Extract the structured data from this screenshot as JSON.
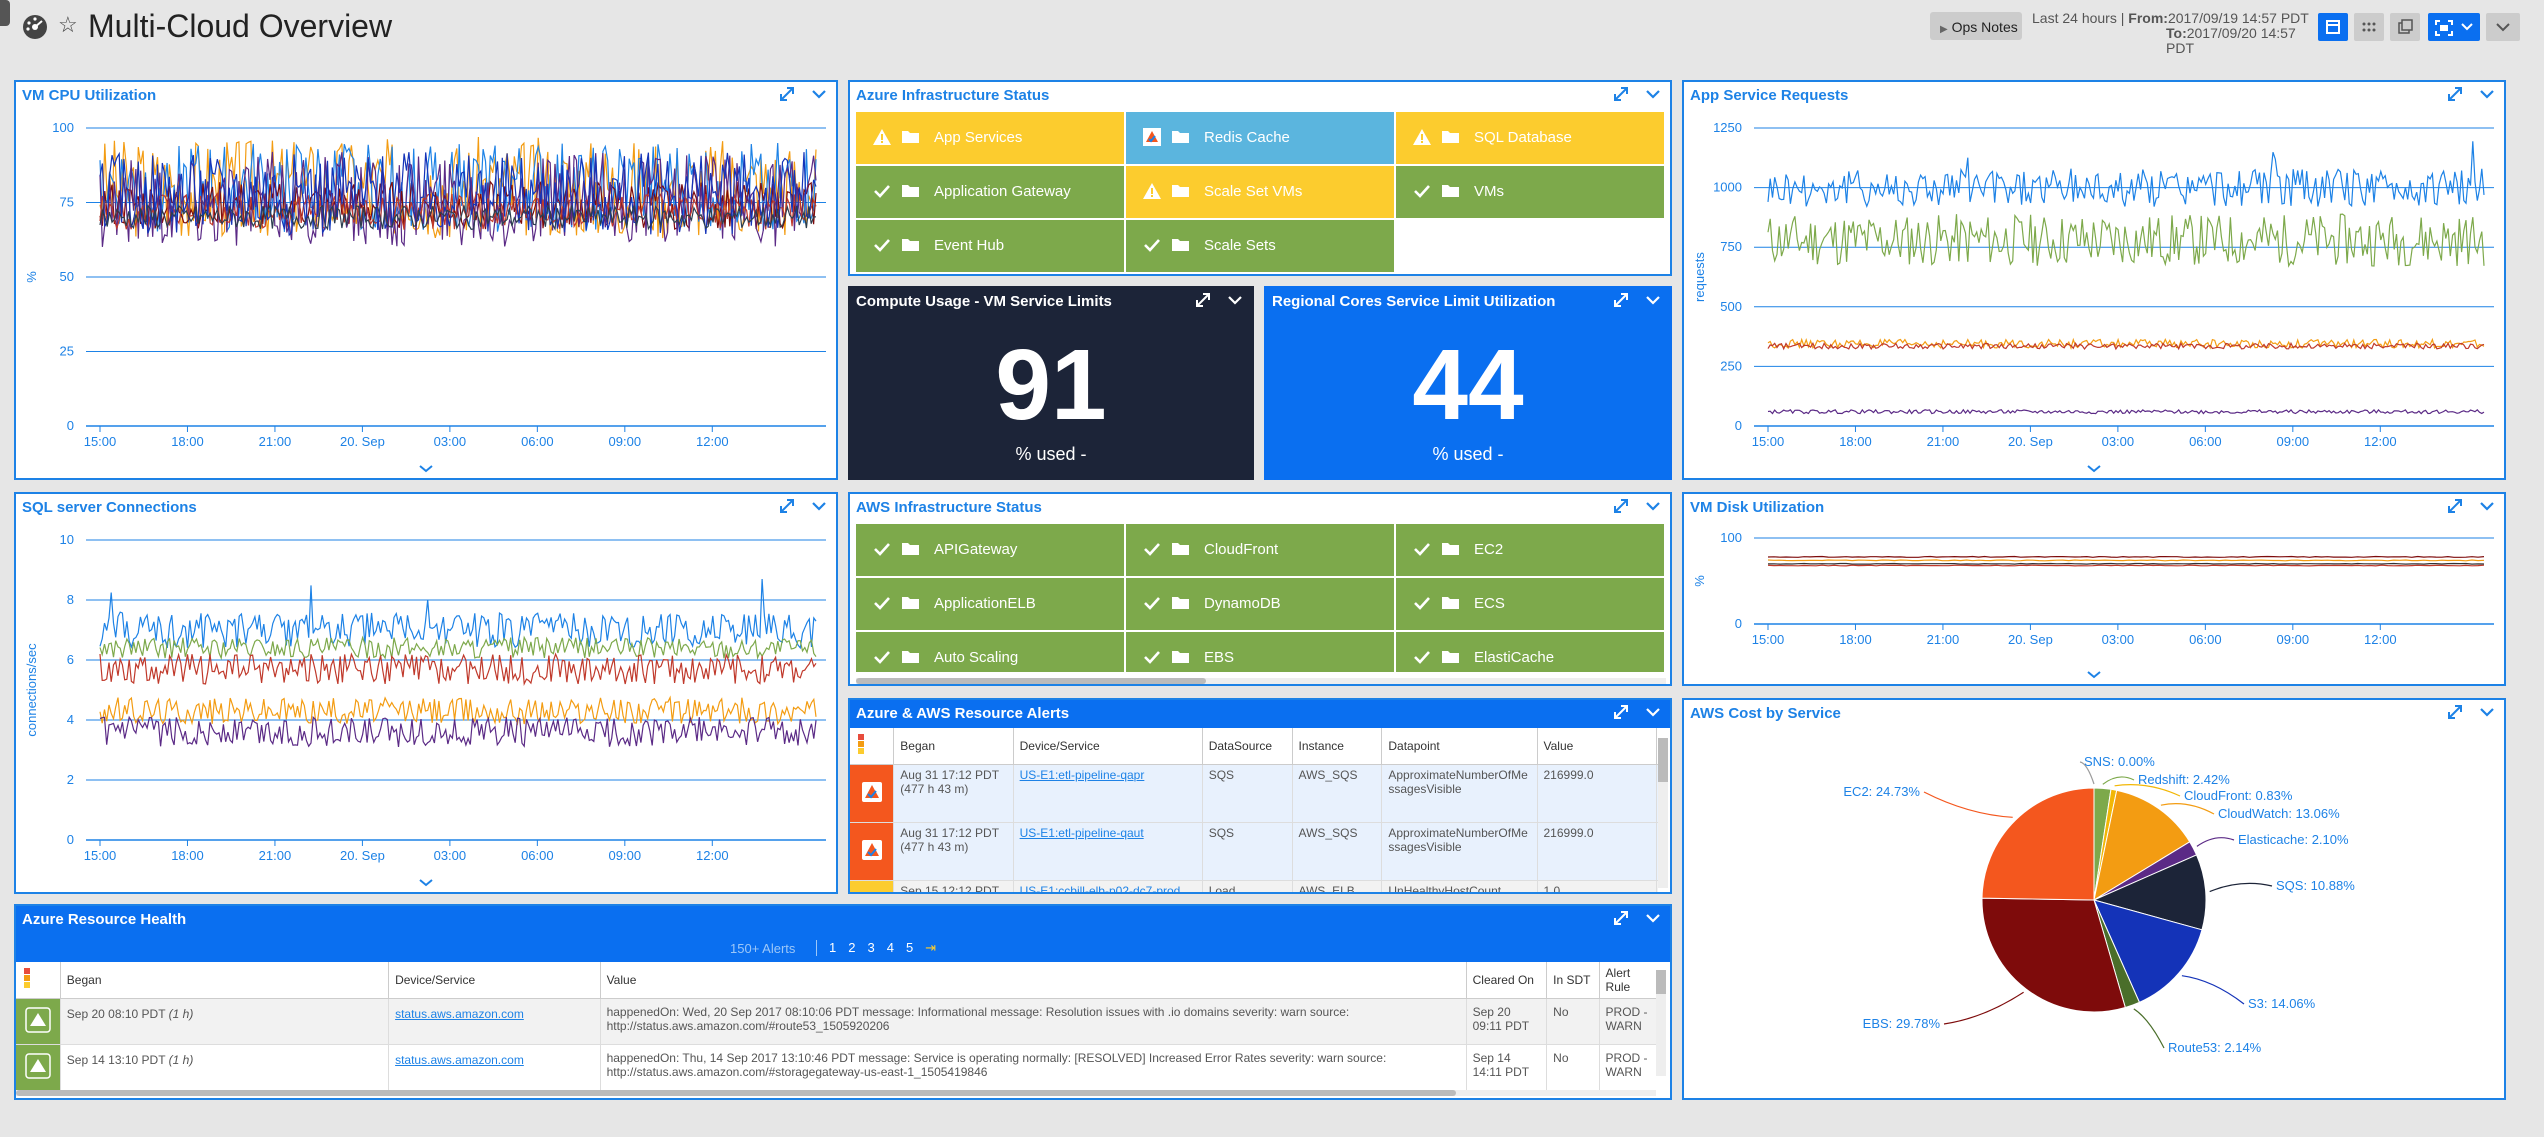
{
  "header": {
    "title": "Multi-Cloud Overview",
    "ops_notes": "Ops Notes",
    "range_label": "Last 24 hours",
    "from_label": "From:",
    "from_value": "2017/09/19 14:57 PDT",
    "to_label": "To:",
    "to_value": "2017/09/20 14:57 PDT"
  },
  "time_ticks": [
    "15:00",
    "18:00",
    "21:00",
    "20. Sep",
    "03:00",
    "06:00",
    "09:00",
    "12:00"
  ],
  "colors": {
    "accent": "#1d82e6",
    "ok": "#7da94b",
    "warn": "#fccc2e",
    "info": "#5bb5de",
    "dark": "#1c2438",
    "bright": "#0a6ff0"
  },
  "vm_cpu": {
    "title": "VM CPU Utilization",
    "ylabel": "%",
    "yticks": [
      "100",
      "75",
      "50",
      "25",
      "0"
    ]
  },
  "app_requests": {
    "title": "App Service Requests",
    "ylabel": "requests",
    "yticks": [
      "1250",
      "1000",
      "750",
      "500",
      "250",
      "0"
    ]
  },
  "sql_conn": {
    "title": "SQL server Connections",
    "ylabel": "connections/sec",
    "yticks": [
      "10",
      "8",
      "6",
      "4",
      "2",
      "0"
    ]
  },
  "vm_disk": {
    "title": "VM Disk Utilization",
    "ylabel": "%",
    "yticks": [
      "100",
      "0"
    ]
  },
  "azure_infra": {
    "title": "Azure Infrastructure Status",
    "tiles": [
      {
        "label": "App Services",
        "status": "warn"
      },
      {
        "label": "Redis Cache",
        "status": "info"
      },
      {
        "label": "SQL Database",
        "status": "warn"
      },
      {
        "label": "Application Gateway",
        "status": "ok"
      },
      {
        "label": "Scale Set VMs",
        "status": "warn"
      },
      {
        "label": "VMs",
        "status": "ok"
      },
      {
        "label": "Event Hub",
        "status": "ok"
      },
      {
        "label": "Scale Sets",
        "status": "ok"
      }
    ]
  },
  "compute_usage": {
    "title": "Compute Usage - VM Service Limits",
    "value": "91",
    "caption": "% used -"
  },
  "regional_cores": {
    "title": "Regional Cores Service Limit Utilization",
    "value": "44",
    "caption": "% used -"
  },
  "aws_infra": {
    "title": "AWS Infrastructure Status",
    "tiles": [
      {
        "label": "APIGateway",
        "status": "ok"
      },
      {
        "label": "CloudFront",
        "status": "ok"
      },
      {
        "label": "EC2",
        "status": "ok"
      },
      {
        "label": "ApplicationELB",
        "status": "ok"
      },
      {
        "label": "DynamoDB",
        "status": "ok"
      },
      {
        "label": "ECS",
        "status": "ok"
      },
      {
        "label": "Auto Scaling",
        "status": "ok"
      },
      {
        "label": "EBS",
        "status": "ok"
      },
      {
        "label": "ElastiCache",
        "status": "ok"
      }
    ]
  },
  "resource_alerts": {
    "title": "Azure & AWS Resource Alerts",
    "columns": [
      "Began",
      "Device/Service",
      "DataSource",
      "Instance",
      "Datapoint",
      "Value"
    ],
    "rows": [
      {
        "began": "Aug 31 17:12 PDT",
        "duration": "(477 h 43 m)",
        "device": "US-E1:etl-pipeline-qapr",
        "datasource": "SQS",
        "instance": "AWS_SQS",
        "datapoint": "ApproximateNumberOfMessagesVisible",
        "value": "216999.0"
      },
      {
        "began": "Aug 31 17:12 PDT",
        "duration": "(477 h 43 m)",
        "device": "US-E1:etl-pipeline-qaut",
        "datasource": "SQS",
        "instance": "AWS_SQS",
        "datapoint": "ApproximateNumberOfMessagesVisible",
        "value": "216999.0"
      },
      {
        "began": "Sep 15 12:12 PDT",
        "duration": "",
        "device": "US-E1:ccbill-elb-p02-dc7-prod",
        "datasource": "Load",
        "instance": "AWS_ELB",
        "datapoint": "UnHealthyHostCount",
        "value": "1.0"
      }
    ]
  },
  "resource_health": {
    "title": "Azure Resource Health",
    "alert_count": "150+ Alerts",
    "pages": [
      "1",
      "2",
      "3",
      "4",
      "5"
    ],
    "next": "⇥",
    "columns": [
      "Began",
      "Device/Service",
      "Value",
      "Cleared On",
      "In SDT",
      "Alert Rule"
    ],
    "rows": [
      {
        "began": "Sep 20 08:10 PDT",
        "duration": "(1 h)",
        "device": "status.aws.amazon.com",
        "value": "happenedOn: Wed, 20 Sep 2017 08:10:06 PDT message: Informational message: Resolution issues with .io domains severity: warn source: http://status.aws.amazon.com/#route53_1505920206",
        "cleared": "Sep 20 09:11 PDT",
        "sdt": "No",
        "rule": "PROD - WARN"
      },
      {
        "began": "Sep 14 13:10 PDT",
        "duration": "(1 h)",
        "device": "status.aws.amazon.com",
        "value": "happenedOn: Thu, 14 Sep 2017 13:10:46 PDT message: Service is operating normally: [RESOLVED] Increased Error Rates severity: warn source: http://status.aws.amazon.com/#storagegateway-us-east-1_1505419846",
        "cleared": "Sep 14 14:11 PDT",
        "sdt": "No",
        "rule": "PROD - WARN"
      }
    ]
  },
  "aws_cost": {
    "title": "AWS Cost by Service"
  },
  "chart_data": [
    {
      "type": "pie",
      "title": "AWS Cost by Service",
      "slices": [
        {
          "label": "SNS",
          "value": 0.0,
          "text": "SNS: 0.00%",
          "color": "#9b9b9b"
        },
        {
          "label": "Redshift",
          "value": 2.42,
          "text": "Redshift: 2.42%",
          "color": "#7da94b"
        },
        {
          "label": "CloudFront",
          "value": 0.83,
          "text": "CloudFront: 0.83%",
          "color": "#f2b705"
        },
        {
          "label": "CloudWatch",
          "value": 13.06,
          "text": "CloudWatch: 13.06%",
          "color": "#f39c12"
        },
        {
          "label": "Elasticache",
          "value": 2.1,
          "text": "Elasticache: 2.10%",
          "color": "#5b2a86"
        },
        {
          "label": "SQS",
          "value": 10.88,
          "text": "SQS: 10.88%",
          "color": "#1c2438"
        },
        {
          "label": "S3",
          "value": 14.06,
          "text": "S3: 14.06%",
          "color": "#1433b8"
        },
        {
          "label": "Route53",
          "value": 2.14,
          "text": "Route53: 2.14%",
          "color": "#4a6e2a"
        },
        {
          "label": "EBS",
          "value": 29.78,
          "text": "EBS: 29.78%",
          "color": "#7e0b0b"
        },
        {
          "label": "EC2",
          "value": 24.73,
          "text": "EC2: 24.73%",
          "color": "#f4571e"
        }
      ]
    }
  ]
}
